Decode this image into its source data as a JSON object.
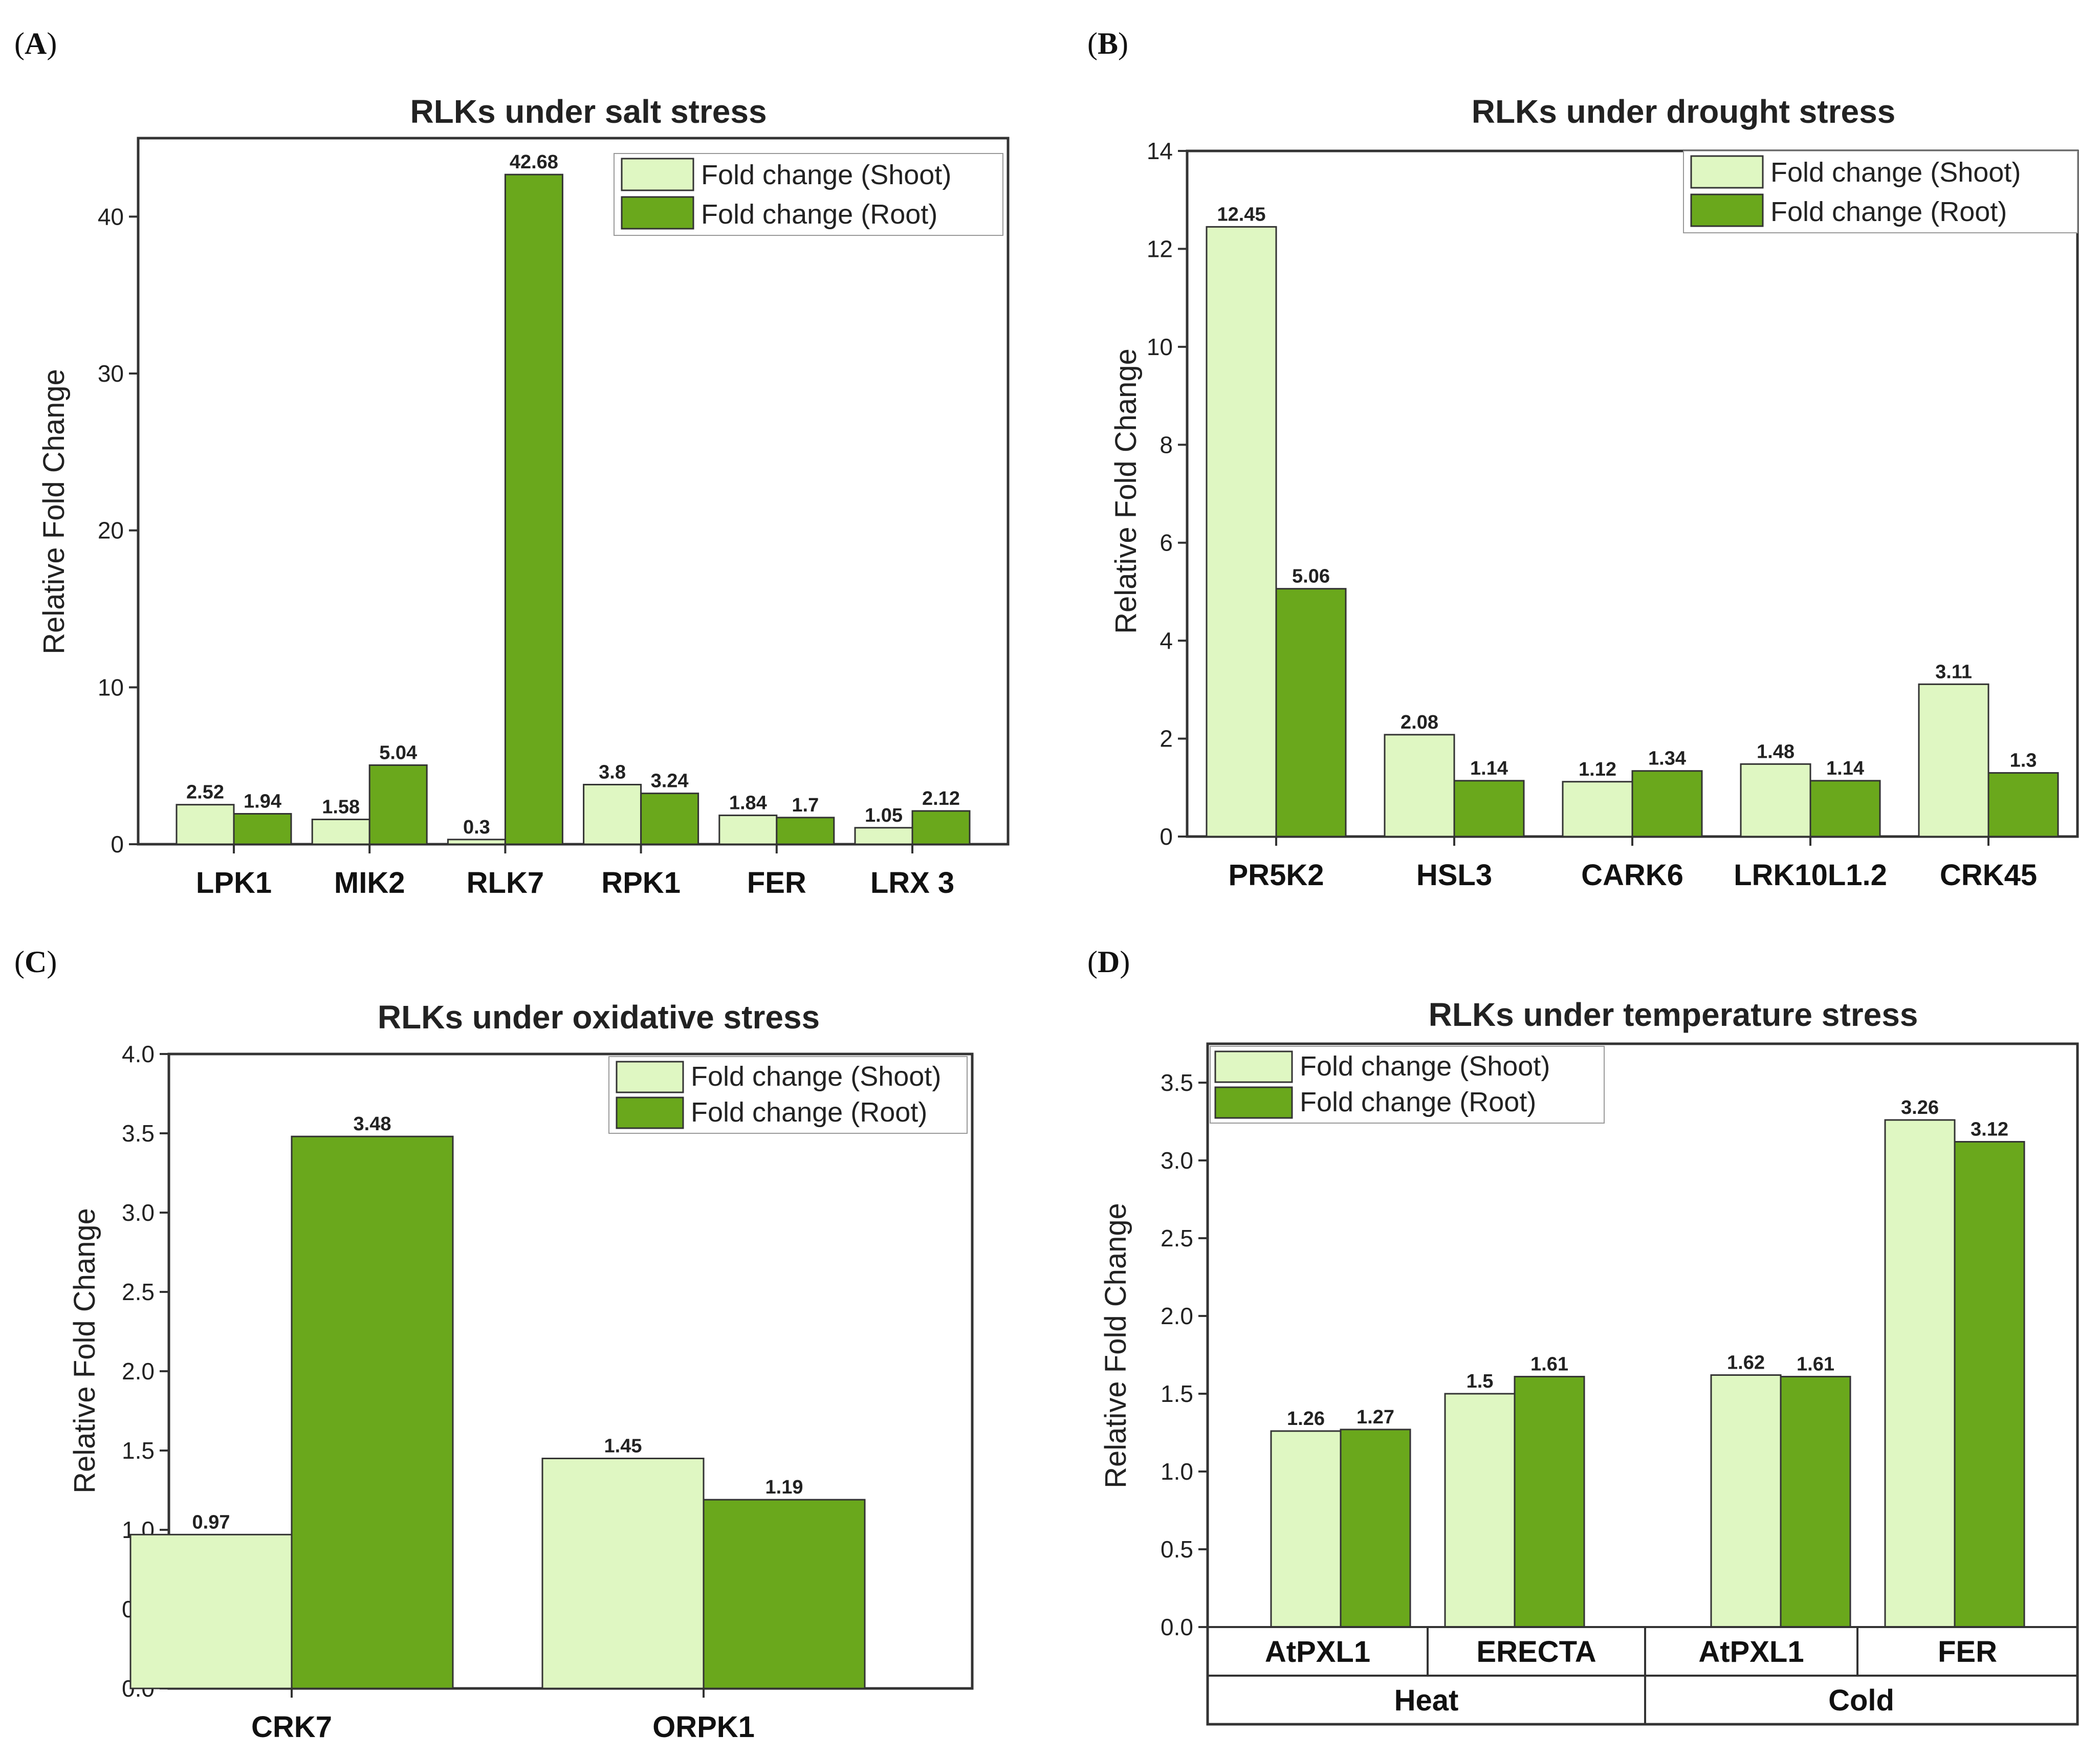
{
  "colors": {
    "shoot": "#dff7c2",
    "root": "#6aa81c",
    "stroke": "#333333"
  },
  "legend": {
    "shoot": "Fold change (Shoot)",
    "root": "Fold change (Root)"
  },
  "panels": [
    {
      "letter": "A"
    },
    {
      "letter": "B"
    },
    {
      "letter": "C"
    },
    {
      "letter": "D"
    }
  ],
  "chart_data": [
    {
      "panel": "A",
      "type": "bar",
      "title": "RLKs under salt stress",
      "ylabel": "Relative Fold Change",
      "ylim": [
        0,
        45
      ],
      "yticks": [
        0,
        10,
        20,
        30,
        40
      ],
      "ytick_labels": [
        "0",
        "10",
        "20",
        "30",
        "40"
      ],
      "categories": [
        "LPK1",
        "MIK2",
        "RLK7",
        "RPK1",
        "FER",
        "LRX 3"
      ],
      "series": [
        {
          "name": "Fold change (Shoot)",
          "values": [
            2.52,
            1.58,
            0.3,
            3.8,
            1.84,
            1.05
          ]
        },
        {
          "name": "Fold change (Root)",
          "values": [
            1.94,
            5.04,
            42.68,
            3.24,
            1.7,
            2.12
          ]
        }
      ],
      "legend_position": "top-right"
    },
    {
      "panel": "B",
      "type": "bar",
      "title": "RLKs under drought stress",
      "ylabel": "Relative Fold Change",
      "ylim": [
        0,
        14
      ],
      "yticks": [
        0,
        2,
        4,
        6,
        8,
        10,
        12,
        14
      ],
      "ytick_labels": [
        "0",
        "2",
        "4",
        "6",
        "8",
        "10",
        "12",
        "14"
      ],
      "categories": [
        "PR5K2",
        "HSL3",
        "CARK6",
        "LRK10L1.2",
        "CRK45"
      ],
      "series": [
        {
          "name": "Fold change (Shoot)",
          "values": [
            12.45,
            2.08,
            1.12,
            1.48,
            3.11
          ]
        },
        {
          "name": "Fold change (Root)",
          "values": [
            5.06,
            1.14,
            1.34,
            1.14,
            1.3
          ]
        }
      ],
      "legend_position": "top-right"
    },
    {
      "panel": "C",
      "type": "bar",
      "title": "RLKs under oxidative stress",
      "ylabel": "Relative Fold Change",
      "ylim": [
        0,
        4
      ],
      "yticks": [
        0,
        0.5,
        1,
        1.5,
        2,
        2.5,
        3,
        3.5,
        4
      ],
      "ytick_labels": [
        "0.0",
        "0.5",
        "1.0",
        "1.5",
        "2.0",
        "2.5",
        "3.0",
        "3.5",
        "4.0"
      ],
      "categories": [
        "CRK7",
        "ORPK1"
      ],
      "series": [
        {
          "name": "Fold change (Shoot)",
          "values": [
            0.97,
            1.45
          ]
        },
        {
          "name": "Fold change (Root)",
          "values": [
            3.48,
            1.19
          ]
        }
      ],
      "legend_position": "top-right"
    },
    {
      "panel": "D",
      "type": "bar",
      "title": "RLKs under temperature stress",
      "ylabel": "Relative Fold Change",
      "ylim": [
        0,
        3.75
      ],
      "yticks": [
        0,
        0.5,
        1,
        1.5,
        2,
        2.5,
        3,
        3.5
      ],
      "ytick_labels": [
        "0.0",
        "0.5",
        "1.0",
        "1.5",
        "2.0",
        "2.5",
        "3.0",
        "3.5"
      ],
      "categories": [
        "AtPXL1",
        "ERECTA",
        "AtPXL1",
        "FER"
      ],
      "groups": [
        {
          "label": "Heat",
          "span": [
            0,
            1
          ]
        },
        {
          "label": "Cold",
          "span": [
            2,
            3
          ]
        }
      ],
      "series": [
        {
          "name": "Fold change (Shoot)",
          "values": [
            1.26,
            1.5,
            1.62,
            3.26
          ]
        },
        {
          "name": "Fold change (Root)",
          "values": [
            1.27,
            1.61,
            1.61,
            3.12
          ]
        }
      ],
      "legend_position": "top-left"
    }
  ]
}
